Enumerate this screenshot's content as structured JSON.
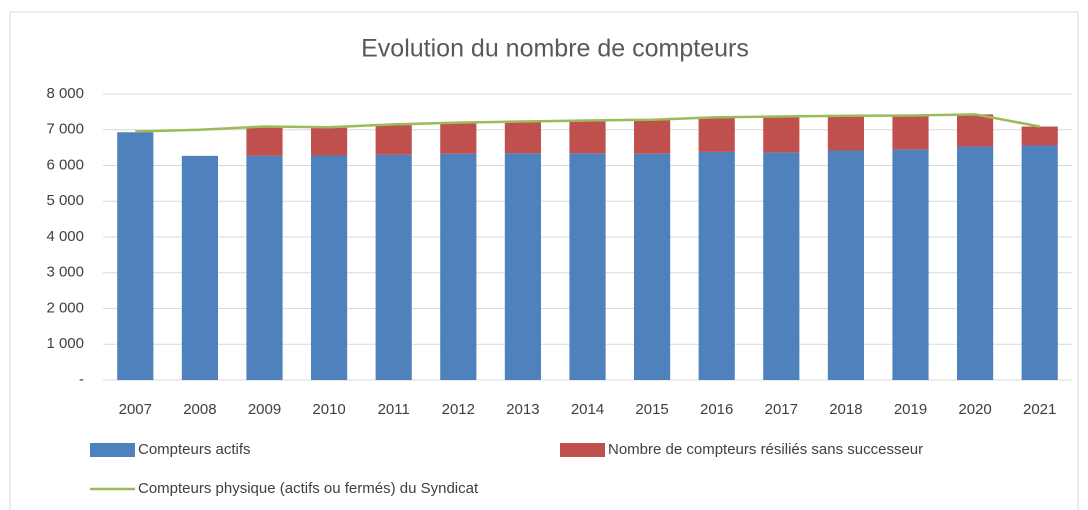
{
  "chart_data": {
    "type": "bar",
    "stacked": true,
    "title": "Evolution du nombre de compteurs",
    "categories": [
      "2007",
      "2008",
      "2009",
      "2010",
      "2011",
      "2012",
      "2013",
      "2014",
      "2015",
      "2016",
      "2017",
      "2018",
      "2019",
      "2020",
      "2021"
    ],
    "series": [
      {
        "name": "Compteurs actifs",
        "color": "#4f81bd",
        "type": "bar",
        "values": [
          6930,
          6270,
          6270,
          6280,
          6300,
          6330,
          6340,
          6340,
          6330,
          6380,
          6360,
          6420,
          6450,
          6530,
          6560
        ]
      },
      {
        "name": "Nombre de compteurs résiliés sans successeur",
        "color": "#c0504d",
        "type": "bar",
        "values": [
          0,
          0,
          800,
          780,
          830,
          860,
          880,
          910,
          940,
          970,
          1010,
          970,
          950,
          900,
          530
        ]
      },
      {
        "name": "Compteurs physique (actifs ou fermés) du Syndicat",
        "color": "#9bbb59",
        "type": "line",
        "values": [
          6950,
          7000,
          7090,
          7070,
          7150,
          7200,
          7230,
          7260,
          7280,
          7350,
          7370,
          7390,
          7400,
          7430,
          7090
        ]
      }
    ],
    "ylim": [
      0,
      8000
    ],
    "yticks": [
      {
        "value": 0,
        "label": "-"
      },
      {
        "value": 1000,
        "label": "1 000"
      },
      {
        "value": 2000,
        "label": "2 000"
      },
      {
        "value": 3000,
        "label": "3 000"
      },
      {
        "value": 4000,
        "label": "4 000"
      },
      {
        "value": 5000,
        "label": "5 000"
      },
      {
        "value": 6000,
        "label": "6 000"
      },
      {
        "value": 7000,
        "label": "7 000"
      },
      {
        "value": 8000,
        "label": "8 000"
      }
    ],
    "grid": true,
    "legend": "bottom"
  }
}
